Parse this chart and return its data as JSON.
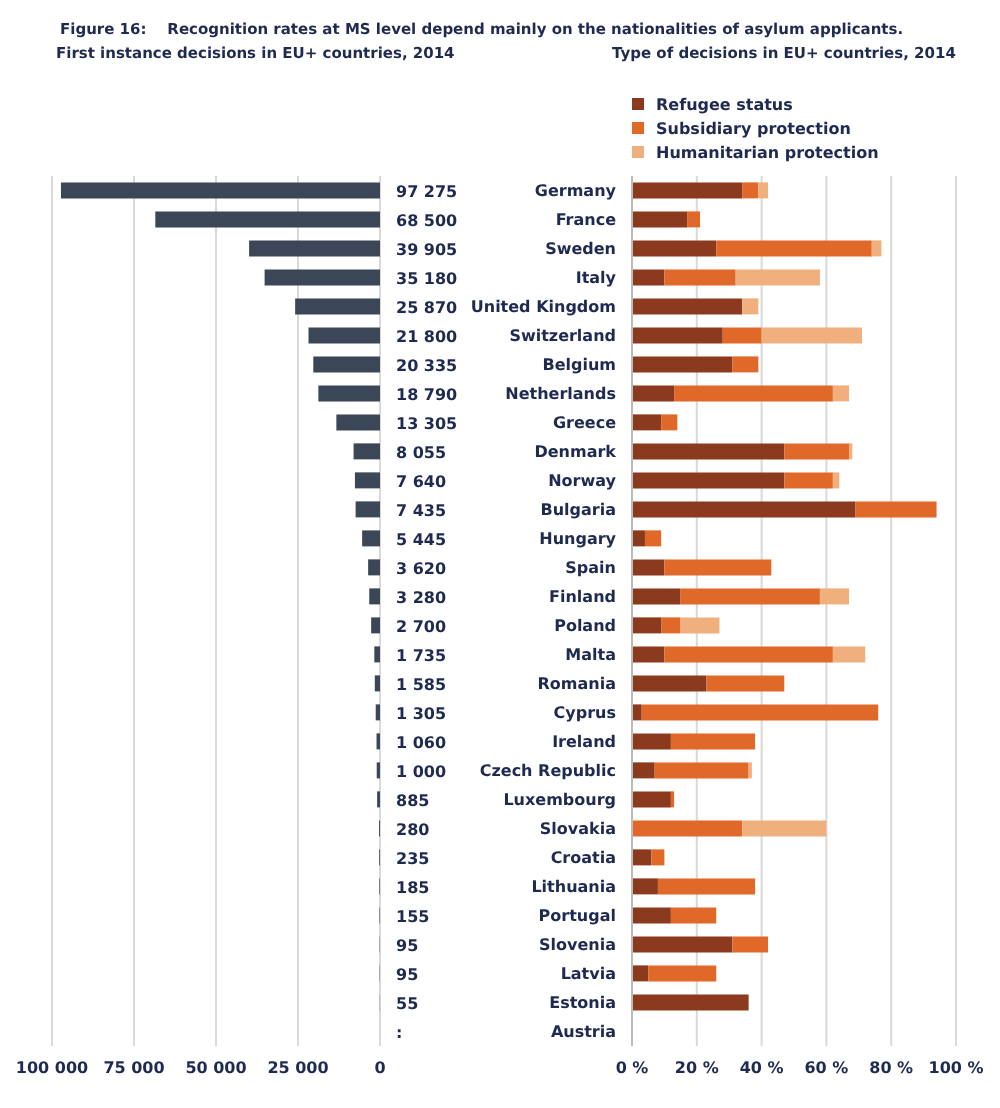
{
  "chart_data": [
    {
      "type": "bar",
      "orientation": "horizontal",
      "title": "Figure 16:    Recognition rates at MS level depend mainly on the nationalities of asylum applicants.",
      "subtitle": "First instance decisions in EU+ countries, 2014",
      "categories": [
        null,
        null,
        null,
        null,
        null,
        null,
        null,
        null,
        null,
        null,
        null,
        null,
        null,
        null,
        null,
        null,
        null,
        null,
        null,
        null,
        null,
        null,
        null,
        null,
        null,
        null,
        null,
        null,
        null,
        null
      ],
      "values": [
        97275,
        68500,
        39905,
        35180,
        25870,
        21800,
        20335,
        18790,
        13305,
        8055,
        7640,
        7435,
        5445,
        3620,
        3280,
        2700,
        1735,
        1585,
        1305,
        1060,
        1000,
        885,
        280,
        235,
        185,
        155,
        95,
        95,
        55,
        null
      ],
      "value_labels": [
        "97 275",
        "68 500",
        "39 905",
        "35 180",
        "25 870",
        "21 800",
        "20 335",
        "18 790",
        "13 305",
        "8 055",
        "7 640",
        "7 435",
        "5 445",
        "3 620",
        "3 280",
        "2 700",
        "1 735",
        "1 585",
        "1 305",
        "1 060",
        "1 000",
        "885",
        "280",
        "235",
        "185",
        "155",
        "95",
        "95",
        "55",
        ":"
      ],
      "color": "#3b4656",
      "xlim": [
        100000,
        0
      ],
      "xticks": [
        {
          "value": 100000,
          "label": "100 000"
        },
        {
          "value": 75000,
          "label": "75 000"
        },
        {
          "value": 50000,
          "label": "50 000"
        },
        {
          "value": 25000,
          "label": "25 000"
        },
        0
      ],
      "grid": "x",
      "tick_labels": "x"
    },
    {
      "type": "bar",
      "orientation": "horizontal",
      "stacked": true,
      "title": "Type of decisions in EU+ countries, 2014",
      "categories": [
        "Germany",
        "France",
        "Sweden",
        "Italy",
        "United Kingdom",
        "Switzerland",
        "Belgium",
        "Netherlands",
        "Greece",
        "Denmark",
        "Norway",
        "Bulgaria",
        "Hungary",
        "Spain",
        "Finland",
        "Poland",
        "Malta",
        "Romania",
        "Cyprus",
        "Ireland",
        "Czech Republic",
        "Luxembourg",
        "Slovakia",
        "Croatia",
        "Lithuania",
        "Portugal",
        "Slovenia",
        "Latvia",
        "Estonia",
        "Austria"
      ],
      "series": [
        {
          "name": "Refugee status",
          "color": "#8b3a1e",
          "values": [
            34,
            17,
            26,
            10,
            34,
            28,
            31,
            13,
            9,
            47,
            47,
            69,
            4,
            10,
            15,
            9,
            10,
            23,
            3,
            12,
            7,
            12,
            0,
            6,
            8,
            12,
            31,
            5,
            36,
            null
          ]
        },
        {
          "name": "Subsidiary protection",
          "color": "#e0692a",
          "values": [
            5,
            4,
            48,
            22,
            0,
            12,
            8,
            49,
            5,
            20,
            15,
            25,
            5,
            33,
            43,
            6,
            52,
            24,
            73,
            26,
            29,
            1,
            34,
            4,
            30,
            14,
            11,
            21,
            0,
            null
          ]
        },
        {
          "name": "Humanitarian protection",
          "color": "#f0b07e",
          "values": [
            3,
            0,
            3,
            26,
            5,
            31,
            0,
            5,
            0,
            1,
            2,
            0,
            0,
            0,
            9,
            12,
            10,
            0,
            0,
            0,
            1,
            0,
            26,
            0,
            0,
            0,
            0,
            0,
            0,
            null
          ]
        }
      ],
      "xlim": [
        0,
        100
      ],
      "xticks": [
        {
          "value": 0,
          "label": "0 %"
        },
        {
          "value": 20,
          "label": "20 %"
        },
        {
          "value": 40,
          "label": "40 %"
        },
        {
          "value": 60,
          "label": "60 %"
        },
        {
          "value": 80,
          "label": "80 %"
        },
        {
          "value": 100,
          "label": "100 %"
        }
      ],
      "grid": "x",
      "legend": "top left"
    }
  ]
}
